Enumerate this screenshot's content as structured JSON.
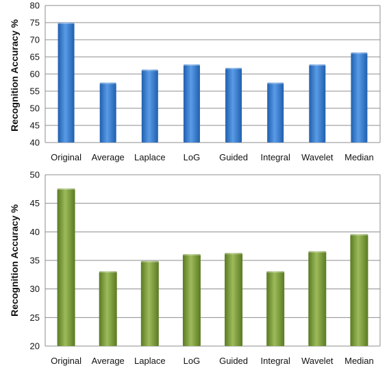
{
  "chart_data": [
    {
      "type": "bar",
      "categories": [
        "Original",
        "Average",
        "Laplace",
        "LoG",
        "Guided",
        "Integral",
        "Wavelet",
        "Median"
      ],
      "values": [
        75,
        57.5,
        61.3,
        62.8,
        61.8,
        57.5,
        62.8,
        66.3
      ],
      "title": "",
      "xlabel": "",
      "ylabel": "Recognition Accuracy %",
      "ylim": [
        40,
        80
      ],
      "yticks": [
        40,
        45,
        50,
        55,
        60,
        65,
        70,
        75,
        80
      ],
      "grid": true,
      "legend": "none",
      "bar_color": "#3b7fd4"
    },
    {
      "type": "bar",
      "categories": [
        "Original",
        "Average",
        "Laplace",
        "LoG",
        "Guided",
        "Integral",
        "Wavelet",
        "Median"
      ],
      "values": [
        47.6,
        33.1,
        34.9,
        36.1,
        36.3,
        33.1,
        36.6,
        39.6
      ],
      "title": "",
      "xlabel": "",
      "ylabel": "Recognition Accuracy %",
      "ylim": [
        20,
        50
      ],
      "yticks": [
        20,
        25,
        30,
        35,
        40,
        45,
        50
      ],
      "grid": true,
      "legend": "none",
      "bar_color": "#7a9a3c"
    }
  ]
}
